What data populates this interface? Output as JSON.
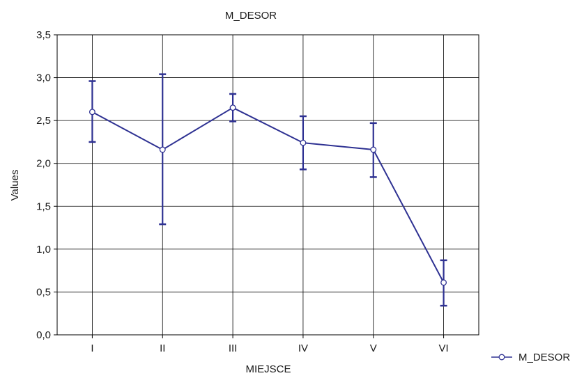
{
  "chart_data": {
    "type": "line",
    "title": "M_DESOR",
    "xlabel": "MIEJSCE",
    "ylabel": "Values",
    "categories": [
      "I",
      "II",
      "III",
      "IV",
      "V",
      "VI"
    ],
    "ylim": [
      0,
      3.5
    ],
    "yticks": [
      0,
      0.5,
      1,
      1.5,
      2,
      2.5,
      3,
      3.5
    ],
    "ytick_labels": [
      "0,0",
      "0,5",
      "1,0",
      "1,5",
      "2,0",
      "2,5",
      "3,0",
      "3,5"
    ],
    "grid": true,
    "legend_position": "bottom-right",
    "series": [
      {
        "name": "M_DESOR",
        "color": "#2e3192",
        "marker": "circle-open",
        "values": [
          2.6,
          2.16,
          2.65,
          2.24,
          2.16,
          0.61
        ],
        "error_low": [
          2.25,
          1.29,
          2.49,
          1.93,
          1.84,
          0.34
        ],
        "error_high": [
          2.96,
          3.04,
          2.81,
          2.55,
          2.47,
          0.87
        ]
      }
    ]
  }
}
